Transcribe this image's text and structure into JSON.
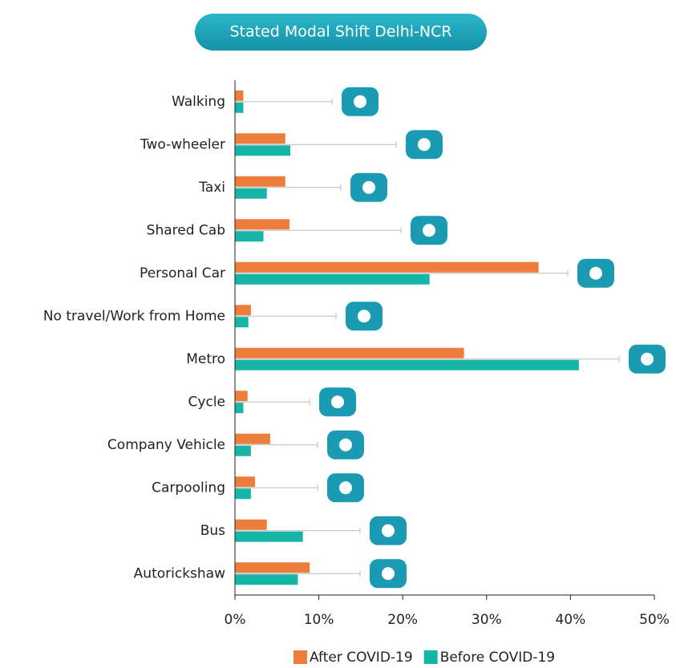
{
  "chart_data": {
    "type": "barh",
    "title": "Stated Modal Shift Delhi-NCR",
    "categories": [
      "Walking",
      "Two-wheeler",
      "Taxi",
      "Shared Cab",
      "Personal Car",
      "No travel/Work from Home",
      "Metro",
      "Cycle",
      "Company Vehicle",
      "Carpooling",
      "Bus",
      "Autorickshaw"
    ],
    "series": [
      {
        "name": "After COVID-19",
        "color": "#ee7d3b",
        "values": [
          1.0,
          6.0,
          6.0,
          6.5,
          36.2,
          1.9,
          27.3,
          1.5,
          4.2,
          2.4,
          3.8,
          8.9
        ]
      },
      {
        "name": "Before COVID-19",
        "color": "#17b5a8",
        "values": [
          1.0,
          6.6,
          3.8,
          3.4,
          23.2,
          1.6,
          41.0,
          1.0,
          1.9,
          1.9,
          8.1,
          7.5
        ]
      }
    ],
    "xlim": [
      0,
      50
    ],
    "xticks": [
      {
        "value": 0,
        "label": "0%"
      },
      {
        "value": 10,
        "label": "10%"
      },
      {
        "value": 20,
        "label": "20%"
      },
      {
        "value": 30,
        "label": "30%"
      },
      {
        "value": 40,
        "label": "40%"
      },
      {
        "value": 50,
        "label": "50%"
      }
    ],
    "legend": "bottom"
  }
}
